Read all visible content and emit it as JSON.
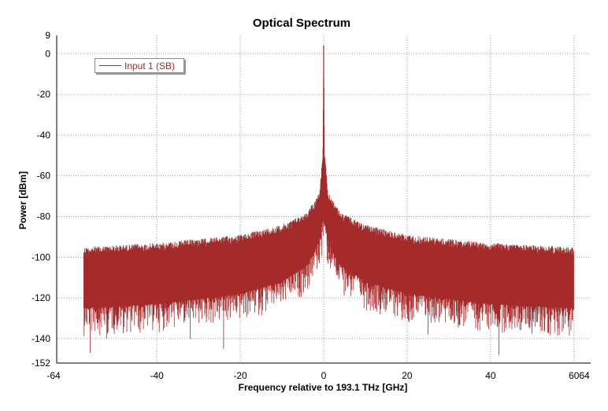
{
  "chart_data": {
    "type": "line",
    "title": "Optical Spectrum",
    "xlabel": "Frequency relative to 193.1 THz [GHz]",
    "ylabel": "Power [dBm]",
    "xlim": [
      -64,
      64
    ],
    "ylim": [
      -152,
      9
    ],
    "x_ticks": [
      -40,
      -20,
      0,
      20,
      40,
      60
    ],
    "x_edge_labels": {
      "min": "-64",
      "max": "64"
    },
    "y_ticks": [
      0,
      -20,
      -40,
      -60,
      -80,
      -100,
      -120,
      -140
    ],
    "y_edge_labels": {
      "max": "9",
      "min": "-152"
    },
    "grid": true,
    "legend_position": "top-left",
    "series": [
      {
        "name": "Input 1  (SB)",
        "color": "#a52a2a",
        "x_range": [
          -57.5,
          60
        ],
        "envelope_upper": [
          {
            "x": -57.5,
            "y": -95
          },
          {
            "x": -40,
            "y": -93
          },
          {
            "x": -20,
            "y": -89
          },
          {
            "x": -10,
            "y": -84
          },
          {
            "x": -4,
            "y": -78
          },
          {
            "x": -1,
            "y": -68
          },
          {
            "x": -0.2,
            "y": -48
          },
          {
            "x": 0,
            "y": 4
          },
          {
            "x": 0.2,
            "y": -48
          },
          {
            "x": 1,
            "y": -68
          },
          {
            "x": 4,
            "y": -78
          },
          {
            "x": 10,
            "y": -84
          },
          {
            "x": 20,
            "y": -89
          },
          {
            "x": 40,
            "y": -93
          },
          {
            "x": 60,
            "y": -95
          }
        ],
        "envelope_lower": [
          {
            "x": -57.5,
            "y": -125
          },
          {
            "x": -40,
            "y": -123
          },
          {
            "x": -20,
            "y": -118
          },
          {
            "x": -10,
            "y": -112
          },
          {
            "x": -4,
            "y": -104
          },
          {
            "x": -1,
            "y": -92
          },
          {
            "x": 0,
            "y": -80
          },
          {
            "x": 1,
            "y": -92
          },
          {
            "x": 4,
            "y": -104
          },
          {
            "x": 10,
            "y": -112
          },
          {
            "x": 20,
            "y": -118
          },
          {
            "x": 40,
            "y": -123
          },
          {
            "x": 60,
            "y": -125
          }
        ],
        "notable_dips": [
          {
            "x": -56,
            "y": -147
          },
          {
            "x": -52,
            "y": -140
          },
          {
            "x": -44,
            "y": -137
          },
          {
            "x": -32,
            "y": -140
          },
          {
            "x": -24,
            "y": -145
          },
          {
            "x": 25,
            "y": -138
          },
          {
            "x": 42,
            "y": -148
          },
          {
            "x": 53,
            "y": -136
          }
        ],
        "peak": {
          "x": 0,
          "y": 4
        }
      }
    ]
  }
}
